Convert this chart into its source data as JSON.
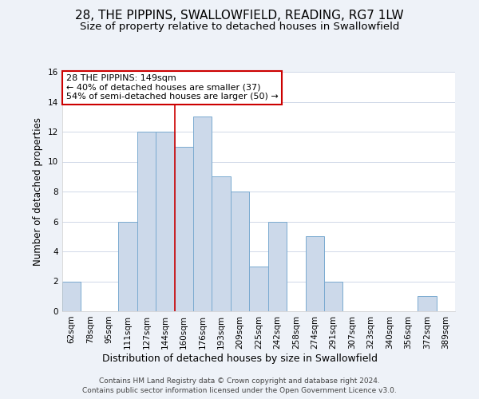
{
  "title": "28, THE PIPPINS, SWALLOWFIELD, READING, RG7 1LW",
  "subtitle": "Size of property relative to detached houses in Swallowfield",
  "xlabel": "Distribution of detached houses by size in Swallowfield",
  "ylabel": "Number of detached properties",
  "bin_labels": [
    "62sqm",
    "78sqm",
    "95sqm",
    "111sqm",
    "127sqm",
    "144sqm",
    "160sqm",
    "176sqm",
    "193sqm",
    "209sqm",
    "225sqm",
    "242sqm",
    "258sqm",
    "274sqm",
    "291sqm",
    "307sqm",
    "323sqm",
    "340sqm",
    "356sqm",
    "372sqm",
    "389sqm"
  ],
  "bar_heights": [
    2,
    0,
    0,
    6,
    12,
    12,
    11,
    13,
    9,
    8,
    3,
    6,
    0,
    5,
    2,
    0,
    0,
    0,
    0,
    1,
    0
  ],
  "bar_color": "#ccd9ea",
  "bar_edge_color": "#7aaad0",
  "red_line_x": 5.5,
  "ylim": [
    0,
    16
  ],
  "yticks": [
    0,
    2,
    4,
    6,
    8,
    10,
    12,
    14,
    16
  ],
  "annotation_line1": "28 THE PIPPINS: 149sqm",
  "annotation_line2": "← 40% of detached houses are smaller (37)",
  "annotation_line3": "54% of semi-detached houses are larger (50) →",
  "annotation_box_color": "#ffffff",
  "annotation_box_edge": "#cc0000",
  "footer1": "Contains HM Land Registry data © Crown copyright and database right 2024.",
  "footer2": "Contains public sector information licensed under the Open Government Licence v3.0.",
  "background_color": "#eef2f8",
  "plot_bg_color": "#ffffff",
  "title_fontsize": 11,
  "subtitle_fontsize": 9.5,
  "xlabel_fontsize": 9,
  "ylabel_fontsize": 8.5,
  "tick_fontsize": 7.5,
  "annotation_fontsize": 8,
  "footer_fontsize": 6.5,
  "grid_color": "#d0d8e8"
}
